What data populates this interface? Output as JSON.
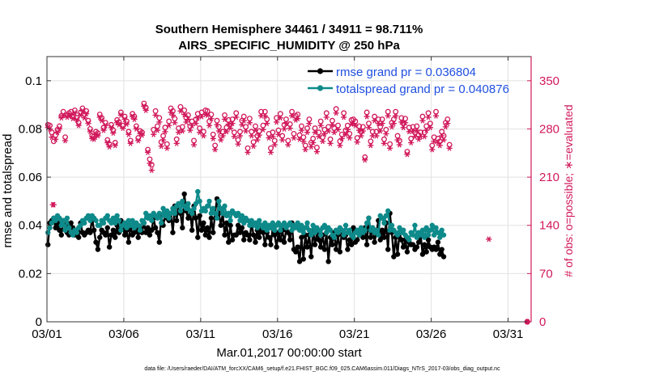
{
  "chart_data": {
    "type": "line",
    "title_line1": "Southern Hemisphere 34461 / 34911 = 98.711%",
    "title_line2": "AIRS_SPECIFIC_HUMIDITY @ 250 hPa",
    "xlabel": "Mar.01,2017 00:00:00 start",
    "ylabel_left": "rmse and totalspread",
    "ylabel_right": "# of obs: o=possible; ∗=evaluated",
    "footer": "data file: /Users/raeder/DAI/ATM_forcXX/CAM6_setup/f.e21.FHIST_BGC.f09_025.CAM6assim.011/Diags_NTrS_2017-03/obs_diag_output.nc",
    "xlim": [
      0,
      31.5
    ],
    "ylim_left": [
      0,
      0.11
    ],
    "ylim_right": [
      0,
      385
    ],
    "x_ticks": [
      0,
      5,
      10,
      15,
      20,
      25,
      30
    ],
    "x_tick_labels": [
      "03/01",
      "03/06",
      "03/11",
      "03/16",
      "03/21",
      "03/26",
      "03/31"
    ],
    "y_ticks_left": [
      0,
      0.02,
      0.04,
      0.06,
      0.08,
      0.1
    ],
    "y_tick_labels_left": [
      "0",
      "0.02",
      "0.04",
      "0.06",
      "0.08",
      "0.1"
    ],
    "y_ticks_right": [
      0,
      70,
      140,
      210,
      280,
      350
    ],
    "y_tick_labels_right": [
      "0",
      "70",
      "140",
      "210",
      "280",
      "350"
    ],
    "legend_position": "top-right",
    "x_step_days": 0.125,
    "series": [
      {
        "name": "rmse grand pr = 0.036804",
        "color": "#000000",
        "axis": "left",
        "values": [
          0.032,
          0.041,
          0.042,
          0.043,
          0.039,
          0.041,
          0.038,
          0.036,
          0.042,
          0.04,
          0.037,
          0.036,
          0.041,
          0.039,
          0.036,
          0.037,
          0.035,
          0.041,
          0.037,
          0.036,
          0.037,
          0.038,
          0.037,
          0.043,
          0.038,
          0.033,
          0.03,
          0.035,
          0.038,
          0.037,
          0.036,
          0.039,
          0.031,
          0.036,
          0.038,
          0.035,
          0.04,
          0.037,
          0.042,
          0.039,
          0.036,
          0.038,
          0.033,
          0.04,
          0.036,
          0.037,
          0.039,
          0.035,
          0.039,
          0.037,
          0.041,
          0.037,
          0.039,
          0.036,
          0.038,
          0.043,
          0.039,
          0.037,
          0.033,
          0.044,
          0.04,
          0.044,
          0.043,
          0.042,
          0.045,
          0.037,
          0.048,
          0.042,
          0.049,
          0.045,
          0.039,
          0.053,
          0.046,
          0.043,
          0.046,
          0.038,
          0.048,
          0.043,
          0.035,
          0.044,
          0.038,
          0.041,
          0.036,
          0.039,
          0.035,
          0.043,
          0.037,
          0.045,
          0.051,
          0.045,
          0.04,
          0.045,
          0.036,
          0.041,
          0.033,
          0.04,
          0.034,
          0.036,
          0.036,
          0.04,
          0.037,
          0.039,
          0.034,
          0.037,
          0.036,
          0.034,
          0.041,
          0.036,
          0.033,
          0.038,
          0.035,
          0.04,
          0.037,
          0.032,
          0.037,
          0.035,
          0.032,
          0.039,
          0.036,
          0.031,
          0.037,
          0.034,
          0.038,
          0.033,
          0.038,
          0.037,
          0.034,
          0.041,
          0.03,
          0.029,
          0.031,
          0.025,
          0.035,
          0.026,
          0.036,
          0.031,
          0.036,
          0.027,
          0.038,
          0.032,
          0.037,
          0.034,
          0.031,
          0.036,
          0.03,
          0.037,
          0.025,
          0.035,
          0.032,
          0.037,
          0.03,
          0.036,
          0.029,
          0.038,
          0.035,
          0.036,
          0.03,
          0.034,
          0.032,
          0.039,
          0.033,
          0.034,
          0.036,
          0.038,
          0.035,
          0.039,
          0.032,
          0.043,
          0.035,
          0.039,
          0.033,
          0.037,
          0.042,
          0.034,
          0.038,
          0.035,
          0.041,
          0.03,
          0.045,
          0.037,
          0.027,
          0.035,
          0.028,
          0.037,
          0.034,
          0.031,
          0.034,
          0.029,
          0.033,
          0.032,
          0.032,
          0.03,
          0.031,
          0.033,
          0.036,
          0.028,
          0.032,
          0.029,
          0.034,
          0.031,
          0.03,
          0.031,
          0.03,
          0.033,
          0.028,
          0.03,
          0.027
        ]
      },
      {
        "name": "totalspread grand pr = 0.040876",
        "color": "#0e8a8a",
        "axis": "left",
        "values": [
          0.037,
          0.039,
          0.041,
          0.043,
          0.042,
          0.044,
          0.043,
          0.04,
          0.042,
          0.038,
          0.043,
          0.039,
          0.037,
          0.036,
          0.038,
          0.037,
          0.039,
          0.04,
          0.042,
          0.041,
          0.043,
          0.044,
          0.042,
          0.044,
          0.043,
          0.042,
          0.04,
          0.04,
          0.042,
          0.041,
          0.043,
          0.044,
          0.042,
          0.041,
          0.043,
          0.041,
          0.044,
          0.042,
          0.038,
          0.04,
          0.041,
          0.039,
          0.042,
          0.04,
          0.042,
          0.039,
          0.041,
          0.04,
          0.038,
          0.042,
          0.041,
          0.045,
          0.043,
          0.044,
          0.042,
          0.045,
          0.044,
          0.043,
          0.045,
          0.041,
          0.047,
          0.044,
          0.046,
          0.043,
          0.045,
          0.047,
          0.045,
          0.048,
          0.049,
          0.046,
          0.05,
          0.048,
          0.047,
          0.049,
          0.046,
          0.045,
          0.047,
          0.049,
          0.054,
          0.05,
          0.046,
          0.047,
          0.046,
          0.048,
          0.05,
          0.045,
          0.047,
          0.045,
          0.043,
          0.05,
          0.047,
          0.045,
          0.048,
          0.044,
          0.045,
          0.042,
          0.046,
          0.045,
          0.044,
          0.045,
          0.042,
          0.044,
          0.041,
          0.043,
          0.042,
          0.04,
          0.042,
          0.04,
          0.041,
          0.039,
          0.042,
          0.04,
          0.039,
          0.041,
          0.038,
          0.04,
          0.039,
          0.041,
          0.038,
          0.04,
          0.041,
          0.038,
          0.04,
          0.041,
          0.039,
          0.04,
          0.041,
          0.038,
          0.04,
          0.039,
          0.041,
          0.038,
          0.04,
          0.037,
          0.039,
          0.041,
          0.038,
          0.036,
          0.04,
          0.037,
          0.039,
          0.038,
          0.036,
          0.039,
          0.04,
          0.037,
          0.039,
          0.038,
          0.036,
          0.035,
          0.038,
          0.037,
          0.039,
          0.038,
          0.036,
          0.04,
          0.037,
          0.038,
          0.036,
          0.035,
          0.037,
          0.038,
          0.036,
          0.039,
          0.037,
          0.038,
          0.041,
          0.043,
          0.038,
          0.039,
          0.037,
          0.038,
          0.036,
          0.044,
          0.043,
          0.041,
          0.044,
          0.046,
          0.038,
          0.04,
          0.038,
          0.037,
          0.036,
          0.039,
          0.037,
          0.038,
          0.036,
          0.035,
          0.034,
          0.037,
          0.036,
          0.04,
          0.035,
          0.037,
          0.036,
          0.038,
          0.035,
          0.039,
          0.036,
          0.038,
          0.04,
          0.036,
          0.039,
          0.037,
          0.035,
          0.038,
          0.036
        ]
      },
      {
        "name": "possible obs",
        "color": "#d1185b",
        "axis": "right",
        "marker": "circle",
        "values": [
          286,
          285,
          275,
          262,
          271,
          279,
          284,
          299,
          305,
          268,
          300,
          303,
          305,
          298,
          307,
          296,
          289,
          304,
          310,
          301,
          306,
          292,
          280,
          270,
          269,
          276,
          274,
          301,
          296,
          282,
          289,
          264,
          258,
          286,
          278,
          260,
          293,
          290,
          304,
          285,
          298,
          291,
          276,
          263,
          302,
          298,
          284,
          267,
          277,
          275,
          317,
          311,
          250,
          236,
          228,
          279,
          306,
          284,
          296,
          261,
          270,
          282,
          258,
          291,
          310,
          306,
          295,
          265,
          281,
          312,
          283,
          307,
          296,
          300,
          284,
          291,
          263,
          294,
          302,
          281,
          304,
          276,
          307,
          306,
          291,
          301,
          272,
          256,
          292,
          283,
          270,
          276,
          300,
          282,
          293,
          287,
          294,
          275,
          303,
          264,
          276,
          292,
          298,
          283,
          252,
          295,
          276,
          261,
          284,
          270,
          277,
          305,
          285,
          305,
          294,
          273,
          252,
          275,
          263,
          296,
          278,
          302,
          270,
          286,
          294,
          263,
          287,
          305,
          273,
          299,
          301,
          271,
          284,
          268,
          256,
          281,
          294,
          260,
          266,
          281,
          253,
          275,
          291,
          268,
          279,
          303,
          283,
          265,
          292,
          281,
          309,
          285,
          262,
          272,
          303,
          278,
          285,
          273,
          293,
          294,
          291,
          267,
          284,
          276,
          283,
          239,
          304,
          288,
          262,
          276,
          298,
          276,
          294,
          283,
          294,
          265,
          279,
          305,
          258,
          289,
          294,
          305,
          270,
          263,
          296,
          288,
          295,
          247,
          282,
          266,
          283,
          275,
          284,
          271,
          275,
          298,
          275,
          284,
          303,
          288,
          256,
          268,
          305,
          266,
          262,
          276,
          270,
          289,
          294,
          257
        ]
      },
      {
        "name": "evaluated obs",
        "color": "#d1185b",
        "axis": "right",
        "marker": "asterisk",
        "values": [
          282,
          280,
          268,
          170,
          265,
          275,
          280,
          296,
          300,
          263,
          297,
          299,
          300,
          295,
          303,
          293,
          285,
          300,
          306,
          296,
          302,
          288,
          276,
          266,
          265,
          272,
          270,
          297,
          292,
          278,
          285,
          260,
          254,
          282,
          274,
          256,
          289,
          286,
          300,
          281,
          294,
          287,
          272,
          259,
          298,
          294,
          280,
          263,
          273,
          271,
          313,
          307,
          246,
          230,
          220,
          272,
          300,
          278,
          290,
          255,
          264,
          276,
          252,
          285,
          304,
          300,
          289,
          259,
          275,
          306,
          277,
          301,
          290,
          294,
          278,
          285,
          257,
          288,
          296,
          275,
          298,
          270,
          301,
          300,
          285,
          295,
          266,
          250,
          286,
          277,
          264,
          270,
          294,
          276,
          287,
          281,
          288,
          269,
          297,
          258,
          270,
          286,
          292,
          277,
          246,
          289,
          270,
          255,
          278,
          264,
          271,
          299,
          279,
          299,
          288,
          267,
          246,
          269,
          257,
          290,
          272,
          296,
          264,
          280,
          288,
          257,
          281,
          299,
          267,
          293,
          295,
          265,
          278,
          262,
          250,
          275,
          288,
          254,
          260,
          275,
          247,
          269,
          285,
          262,
          273,
          297,
          277,
          259,
          286,
          275,
          303,
          279,
          256,
          266,
          297,
          272,
          279,
          267,
          287,
          288,
          285,
          261,
          278,
          270,
          277,
          235,
          298,
          282,
          256,
          270,
          292,
          270,
          288,
          277,
          288,
          259,
          273,
          299,
          252,
          283,
          288,
          299,
          264,
          257,
          290,
          282,
          289,
          243,
          276,
          260,
          277,
          269,
          278,
          265,
          269,
          292,
          269,
          278,
          297,
          282,
          250,
          262,
          299,
          260,
          256,
          270,
          264,
          283,
          288,
          252
        ]
      },
      {
        "name": "evaluated obs isolated points",
        "color": "#d1185b",
        "axis": "right",
        "marker": "asterisk",
        "points": [
          {
            "x": 0.375,
            "y": 170
          },
          {
            "x": 21.875,
            "y": 128
          },
          {
            "x": 28.75,
            "y": 120
          },
          {
            "x": 31.25,
            "y": 0
          }
        ]
      }
    ]
  }
}
